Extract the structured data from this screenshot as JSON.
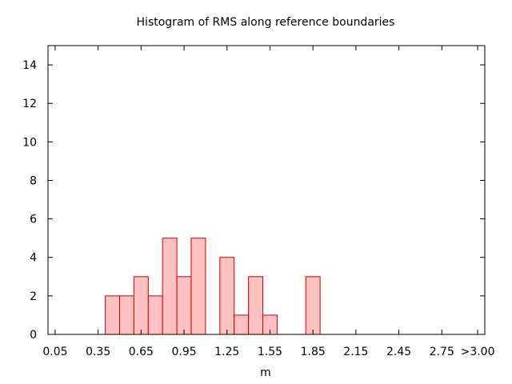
{
  "chart_data": {
    "type": "bar",
    "title": "Histogram of RMS along reference boundaries",
    "xlabel": "m",
    "ylabel": "",
    "x_tick_labels": [
      "0.05",
      "0.35",
      "0.65",
      "0.95",
      "1.25",
      "1.55",
      "1.85",
      "2.15",
      "2.45",
      "2.75",
      ">3.00"
    ],
    "x_tick_values": [
      0.05,
      0.35,
      0.65,
      0.95,
      1.25,
      1.55,
      1.85,
      2.15,
      2.45,
      2.75,
      3.0
    ],
    "xlim": [
      0.0,
      3.05
    ],
    "y_ticks": [
      0,
      2,
      4,
      6,
      8,
      10,
      12,
      14
    ],
    "ylim": [
      0,
      15
    ],
    "bin_width": 0.1,
    "bin_starts": [
      0.4,
      0.5,
      0.6,
      0.7,
      0.8,
      0.9,
      1.0,
      1.2,
      1.3,
      1.4,
      1.5,
      1.8
    ],
    "values": [
      2,
      2,
      3,
      2,
      5,
      3,
      5,
      4,
      1,
      3,
      1,
      3
    ],
    "grid": false,
    "colors": {
      "fill": "#ffc0c0",
      "stroke": "#cc0000",
      "axis": "#000000"
    }
  }
}
